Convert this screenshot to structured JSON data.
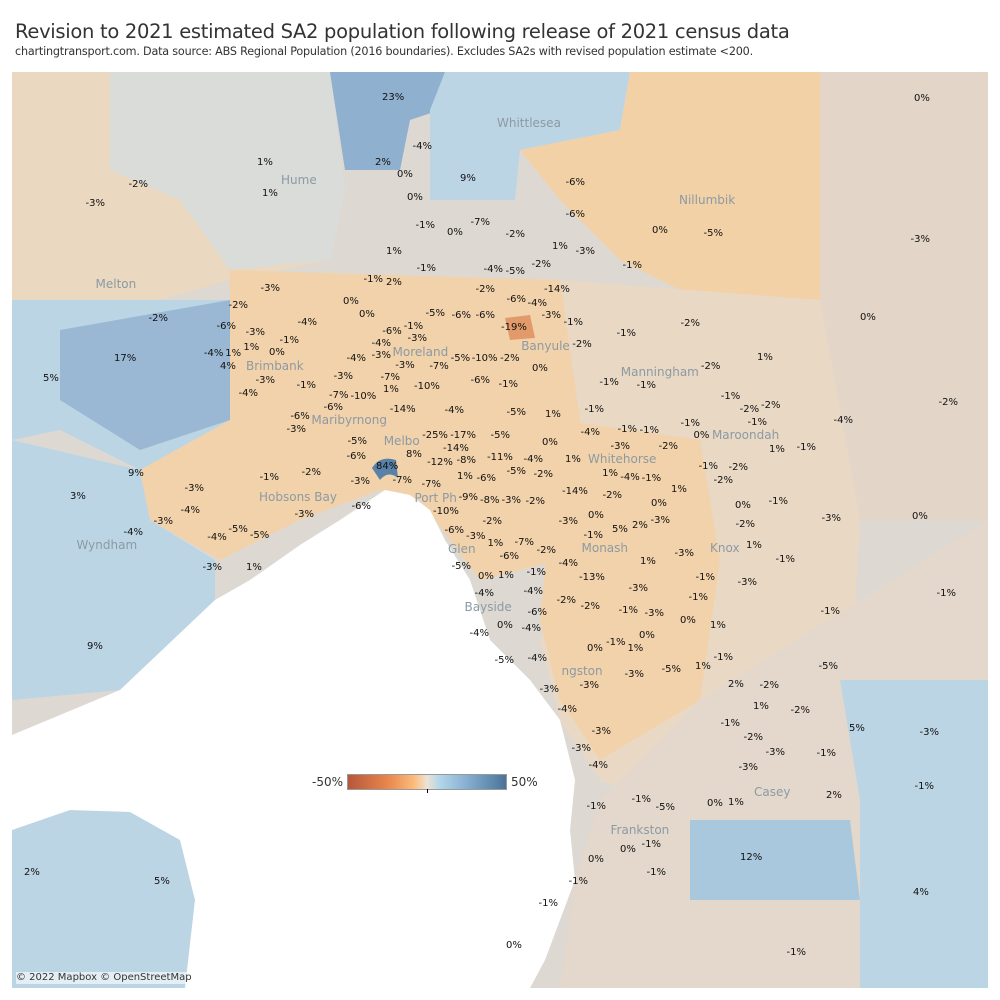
{
  "title": "Revision to 2021 estimated SA2 population following release of 2021 census data",
  "subtitle": "chartingtransport.com. Data source: ABS Regional Population (2016 boundaries). Excludes SA2s with revised population estimate <200.",
  "legend": {
    "min_label": "-50%",
    "max_label": "50%",
    "colors": [
      "#b5573a",
      "#fbbd7c",
      "#ece3d4",
      "#b3d6ea",
      "#4b7399"
    ]
  },
  "credit": "© 2022 Mapbox © OpenStreetMap",
  "areas": [
    "Whittlesea",
    "Hume",
    "Nillumbik",
    "Melton",
    "Moreland",
    "Banyule",
    "Brimbank",
    "Manningham",
    "Maribyrnong",
    "Maroondah",
    "Melbo",
    "Whitehorse",
    "Hobsons Bay",
    "Port Ph",
    "Wyndham",
    "Monash",
    "Knox",
    "Glen",
    "Bayside",
    "ngston",
    "Casey",
    "Frankston"
  ],
  "values": [
    "23%",
    "0%",
    "-4%",
    "1%",
    "2%",
    "9%",
    "0%",
    "-6%",
    "-2%",
    "-3%",
    "1%",
    "0%",
    "-6%",
    "-7%",
    "-1%",
    "0%",
    "-2%",
    "0%",
    "-5%",
    "-3%",
    "1%",
    "-3%",
    "1%",
    "-1%",
    "-1%",
    "-2%",
    "-4%",
    "-5%",
    "-1%",
    "2%",
    "-3%",
    "-2%",
    "-14%",
    "-6%",
    "-4%",
    "-3%",
    "0%",
    "-2%",
    "-2%",
    "-4%",
    "0%",
    "-5%",
    "-6%",
    "-6%",
    "-19%",
    "-1%",
    "-2%",
    "0%",
    "-6%",
    "-3%",
    "-6%",
    "-1%",
    "-4%",
    "-1%",
    "-3%",
    "-2%",
    "-1%",
    "17%",
    "5%",
    "-4%",
    "1%",
    "1%",
    "4%",
    "0%",
    "-4%",
    "-3%",
    "-5%",
    "-10%",
    "-2%",
    "1%",
    "-2%",
    "-3%",
    "-7%",
    "0%",
    "-3%",
    "-1%",
    "-4%",
    "-3%",
    "-7%",
    "1%",
    "-10%",
    "-6%",
    "-1%",
    "-1%",
    "-1%",
    "-2%",
    "-4%",
    "-1%",
    "-2%",
    "-2%",
    "-6%",
    "-7%",
    "-3%",
    "-6%",
    "-10%",
    "-14%",
    "-4%",
    "-5%",
    "1%",
    "-1%",
    "-1%",
    "-1%",
    "0%",
    "-3%",
    "-1%",
    "-1%",
    "-2%",
    "1%",
    "-1%",
    "-4%",
    "0%",
    "-5%",
    "-6%",
    "9%",
    "-1%",
    "-2%",
    "-25%",
    "-17%",
    "-12%",
    "84%",
    "8%",
    "-7%",
    "-5%",
    "-11%",
    "-14%",
    "-8%",
    "-5%",
    "-2%",
    "-4%",
    "1%",
    "-1%",
    "-2%",
    "-2%",
    "-1%",
    "-4%",
    "1%",
    "-3%",
    "-4%",
    "3%",
    "-14%",
    "-2%",
    "1%",
    "0%",
    "0%",
    "-1%",
    "-3%",
    "0%",
    "-3%",
    "-7%",
    "-10%",
    "-9%",
    "-8%",
    "-3%",
    "-2%",
    "-6%",
    "1%",
    "-3%",
    "-4%",
    "-5%",
    "-5%",
    "-4%",
    "-3%",
    "-6%",
    "-2%",
    "-6%",
    "-3%",
    "0%",
    "-3%",
    "5%",
    "2%",
    "-2%",
    "-1%",
    "-3%",
    "-6%",
    "-7%",
    "1%",
    "-2%",
    "-4%",
    "-3%",
    "1%",
    "-1%",
    "-3%",
    "1%",
    "-5%",
    "0%",
    "1%",
    "-1%",
    "-13%",
    "1%",
    "-1%",
    "-3%",
    "-3%",
    "-1%",
    "-1%",
    "9%",
    "-4%",
    "-4%",
    "-2%",
    "-2%",
    "-1%",
    "-3%",
    "-1%",
    "0%",
    "1%",
    "-6%",
    "-4%",
    "0%",
    "-4%",
    "0%",
    "-1%",
    "1%",
    "0%",
    "-5%",
    "1%",
    "-1%",
    "-5%",
    "-5%",
    "-4%",
    "-3%",
    "2%",
    "-2%",
    "1%",
    "-2%",
    "-3%",
    "-3%",
    "-4%",
    "-3%",
    "-1%",
    "-2%",
    "-3%",
    "-1%",
    "5%",
    "-3%",
    "-3%",
    "-4%",
    "-3%",
    "-1%",
    "2%",
    "-1%",
    "-1%",
    "-5%",
    "0%",
    "1%",
    "0%",
    "0%",
    "-1%",
    "12%",
    "2%",
    "5%",
    "-1%",
    "-1%",
    "4%",
    "-1%",
    "0%",
    "-1%"
  ]
}
